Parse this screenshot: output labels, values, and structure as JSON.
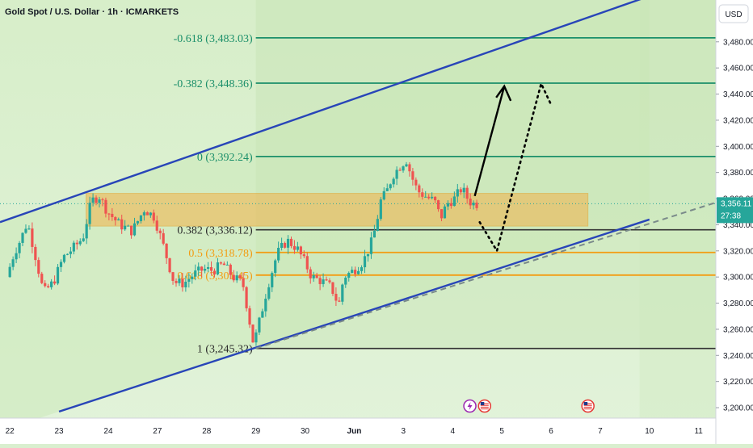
{
  "header": {
    "title": "Gold Spot / U.S. Dollar · 1h · ICMARKETS",
    "currency": "USD"
  },
  "colors": {
    "up": "#26a69a",
    "down": "#ef5350",
    "fibGreen": "#1b8f6a",
    "fibOrange": "#f39c12",
    "channel": "#2845b8",
    "zone": "#f2b34a",
    "bg": "#d9efcf"
  },
  "chart_data": {
    "type": "candlestick",
    "title": "Gold Spot / U.S. Dollar · 1h · ICMARKETS",
    "ylim": [
      3192,
      3512
    ],
    "y_ticks": [
      3480,
      3460,
      3440,
      3420,
      3400,
      3380,
      3360,
      3340,
      3320,
      3300,
      3280,
      3260,
      3240,
      3220,
      3200
    ],
    "y_tick_labels": [
      "3,480.00",
      "3,460.00",
      "3,440.00",
      "3,420.00",
      "3,400.00",
      "3,380.00",
      "3,360.00",
      "3,340.00",
      "3,320.00",
      "3,300.00",
      "3,280.00",
      "3,260.00",
      "3,240.00",
      "3,220.00",
      "3,200.00"
    ],
    "x_ticks": [
      {
        "label": "22",
        "x": 0
      },
      {
        "label": "23",
        "x": 1
      },
      {
        "label": "24",
        "x": 2
      },
      {
        "label": "27",
        "x": 3
      },
      {
        "label": "28",
        "x": 4
      },
      {
        "label": "29",
        "x": 5
      },
      {
        "label": "30",
        "x": 6
      },
      {
        "label": "Jun",
        "x": 7
      },
      {
        "label": "3",
        "x": 8
      },
      {
        "label": "4",
        "x": 9
      },
      {
        "label": "5",
        "x": 10
      },
      {
        "label": "6",
        "x": 11
      },
      {
        "label": "7",
        "x": 12
      },
      {
        "label": "10",
        "x": 13
      },
      {
        "label": "11",
        "x": 14
      }
    ],
    "x_range": [
      -0.2,
      14.35
    ],
    "current_price": {
      "value": 3356.11,
      "label": "3,356.11",
      "countdown": "27:38"
    },
    "price_path": [
      [
        0,
        3300
      ],
      [
        0.15,
        3318
      ],
      [
        0.3,
        3330
      ],
      [
        0.42,
        3342
      ],
      [
        0.55,
        3322
      ],
      [
        0.75,
        3288
      ],
      [
        0.95,
        3296
      ],
      [
        1.15,
        3315
      ],
      [
        1.35,
        3322
      ],
      [
        1.55,
        3330
      ],
      [
        1.72,
        3358
      ],
      [
        1.88,
        3362
      ],
      [
        2.05,
        3350
      ],
      [
        2.3,
        3340
      ],
      [
        2.55,
        3335
      ],
      [
        2.8,
        3352
      ],
      [
        3.0,
        3346
      ],
      [
        3.2,
        3322
      ],
      [
        3.4,
        3296
      ],
      [
        3.6,
        3295
      ],
      [
        3.8,
        3302
      ],
      [
        4.0,
        3306
      ],
      [
        4.2,
        3305
      ],
      [
        4.4,
        3310
      ],
      [
        4.6,
        3300
      ],
      [
        4.8,
        3295
      ],
      [
        4.92,
        3270
      ],
      [
        5.02,
        3248
      ],
      [
        5.15,
        3268
      ],
      [
        5.3,
        3292
      ],
      [
        5.5,
        3318
      ],
      [
        5.7,
        3328
      ],
      [
        5.9,
        3322
      ],
      [
        6.05,
        3312
      ],
      [
        6.2,
        3300
      ],
      [
        6.4,
        3297
      ],
      [
        6.6,
        3292
      ],
      [
        6.75,
        3278
      ],
      [
        6.85,
        3300
      ],
      [
        7.05,
        3305
      ],
      [
        7.25,
        3312
      ],
      [
        7.4,
        3325
      ],
      [
        7.5,
        3338
      ],
      [
        7.6,
        3358
      ],
      [
        7.72,
        3365
      ],
      [
        7.85,
        3378
      ],
      [
        8.0,
        3385
      ],
      [
        8.12,
        3390
      ],
      [
        8.22,
        3378
      ],
      [
        8.35,
        3366
      ],
      [
        8.5,
        3362
      ],
      [
        8.7,
        3358
      ],
      [
        8.82,
        3345
      ],
      [
        8.95,
        3356
      ],
      [
        9.1,
        3360
      ],
      [
        9.25,
        3368
      ],
      [
        9.4,
        3358
      ],
      [
        9.5,
        3356
      ]
    ],
    "fib_levels": [
      {
        "ratio": "-0.618",
        "label": "-0.618 (3,483.03)",
        "value": 3483.03,
        "color": "#1b8f6a"
      },
      {
        "ratio": "-0.382",
        "label": "-0.382 (3,448.36)",
        "value": 3448.36,
        "color": "#1b8f6a"
      },
      {
        "ratio": "0",
        "label": "0 (3,392.24)",
        "value": 3392.24,
        "color": "#1b8f6a"
      },
      {
        "ratio": "0.382",
        "label": "0.382 (3,336.12)",
        "value": 3336.12,
        "color": "#333333"
      },
      {
        "ratio": "0.5",
        "label": "0.5 (3,318.78)",
        "value": 3318.78,
        "color": "#f39c12"
      },
      {
        "ratio": "0.618",
        "label": "0.618 (3,301.45)",
        "value": 3301.45,
        "color": "#f39c12"
      },
      {
        "ratio": "1",
        "label": "1 (3,245.32)",
        "value": 3245.32,
        "color": "#333333"
      }
    ],
    "fib_x_start": 5.0,
    "zone": {
      "x0": 1.55,
      "x1": 11.75,
      "top": 3364,
      "bottom": 3339
    },
    "channel_upper": [
      [
        -0.2,
        3342
      ],
      [
        13.0,
        3515
      ]
    ],
    "channel_lower": [
      [
        1.0,
        3197
      ],
      [
        13.0,
        3344
      ]
    ],
    "dashed_trend": [
      [
        5.0,
        3245.32
      ],
      [
        14.35,
        3357
      ]
    ],
    "arrow_solid": [
      [
        9.45,
        3362
      ],
      [
        10.05,
        3446
      ]
    ],
    "arrow_dotted": [
      [
        9.55,
        3342
      ],
      [
        9.9,
        3320
      ],
      [
        10.8,
        3448
      ],
      [
        11.0,
        3432
      ]
    ],
    "markers": [
      {
        "icon": "lightning-icon",
        "x": 9.35
      },
      {
        "icon": "us-flag-icon",
        "x": 9.65
      },
      {
        "icon": "us-flag-icon",
        "x": 11.75
      }
    ]
  }
}
